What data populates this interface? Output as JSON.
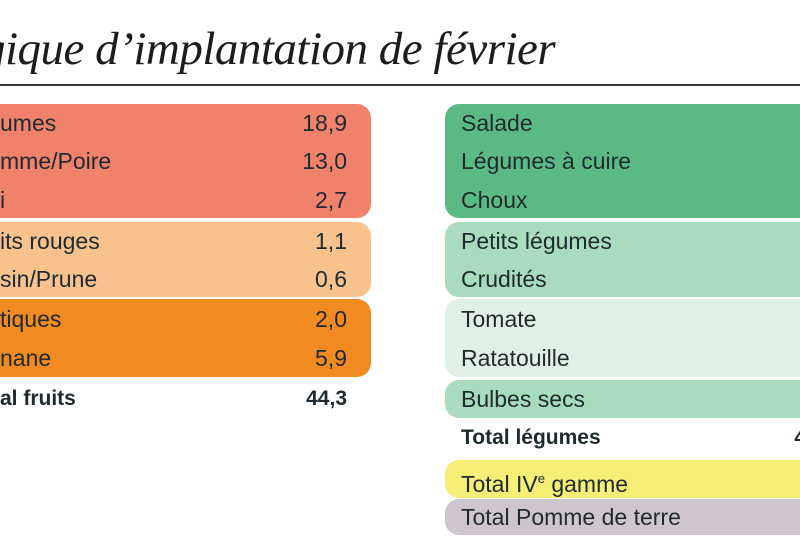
{
  "header": {
    "title": "gique d’implantation de février"
  },
  "fruits": {
    "rows": [
      {
        "label": "umes",
        "value": "18,9"
      },
      {
        "label": "mme/Poire",
        "value": "13,0"
      },
      {
        "label": "i",
        "value": "2,7"
      },
      {
        "label": "its rouges",
        "value": "1,1"
      },
      {
        "label": "sin/Prune",
        "value": "0,6"
      },
      {
        "label": "tiques",
        "value": "2,0"
      },
      {
        "label": "nane",
        "value": "5,9"
      }
    ],
    "total_label": "al fruits",
    "total_value": "44,3"
  },
  "legumes": {
    "rows": [
      {
        "label": "Salade"
      },
      {
        "label": "Légumes à cuire"
      },
      {
        "label": "Choux"
      },
      {
        "label": "Petits légumes"
      },
      {
        "label": "Crudités"
      },
      {
        "label": "Tomate"
      },
      {
        "label": "Ratatouille"
      },
      {
        "label": "Bulbes secs"
      }
    ],
    "total_label": "Total légumes",
    "total_value_partial": "4",
    "iv_gamme_prefix": "Total IV",
    "iv_gamme_sup": "e",
    "iv_gamme_suffix": " gamme",
    "pomme_de_terre": "Total Pomme de terre"
  },
  "colors": {
    "fruit_red": "#f0816b",
    "fruit_peach": "#f7c28e",
    "fruit_orange": "#f28a22",
    "legume_dark_green": "#5bba84",
    "legume_mid_green": "#a9dbbe",
    "legume_light_green": "#dff1e6",
    "iv_gamme_yellow": "#f6ee77",
    "pomme_de_terre_grey": "#cfc6cd"
  }
}
